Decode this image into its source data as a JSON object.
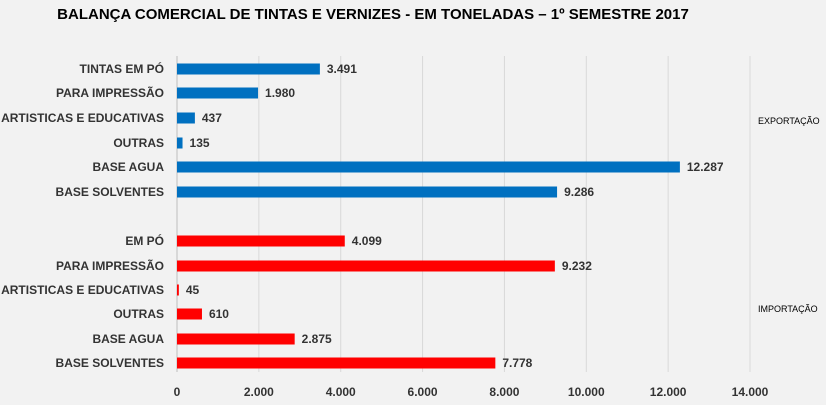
{
  "chart_data": {
    "type": "bar",
    "orientation": "horizontal",
    "title": "BALANÇA COMERCIAL DE TINTAS E VERNIZES - EM TONELADAS –  1º SEMESTRE 2017",
    "xlim": [
      0,
      14000
    ],
    "x_ticks": [
      "0",
      "2.000",
      "4.000",
      "6.000",
      "8.000",
      "10.000",
      "12.000",
      "14.000"
    ],
    "grid": true,
    "groups": [
      {
        "name": "EXPORTAÇÃO",
        "color": "#0070c0",
        "categories": [
          "TINTAS EM PÓ",
          "PARA IMPRESSÃO",
          "ARTISTICAS E EDUCATIVAS",
          "OUTRAS",
          "BASE AGUA",
          "BASE SOLVENTES"
        ],
        "values": [
          3491,
          1980,
          437,
          135,
          12287,
          9286
        ],
        "labels": [
          "3.491",
          "1.980",
          "437",
          "135",
          "12.287",
          "9.286"
        ]
      },
      {
        "name": "IMPORTAÇÃO",
        "color": "#ff0000",
        "categories": [
          "EM PÓ",
          "PARA IMPRESSÃO",
          "ARTISTICAS E EDUCATIVAS",
          "OUTRAS",
          "BASE AGUA",
          "BASE SOLVENTES"
        ],
        "values": [
          4099,
          9232,
          45,
          610,
          2875,
          7778
        ],
        "labels": [
          "4.099",
          "9.232",
          "45",
          "610",
          "2.875",
          "7.778"
        ]
      }
    ]
  }
}
